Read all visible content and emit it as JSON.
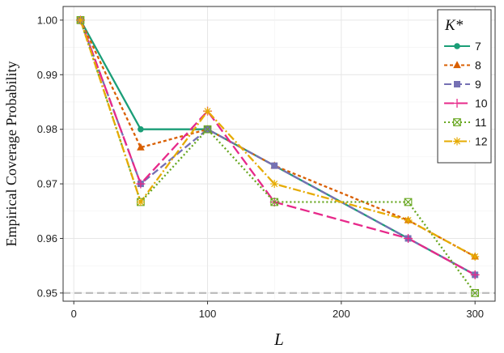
{
  "chart_data": {
    "type": "line",
    "title": "",
    "xlabel": "L",
    "ylabel": "Empirical Coverage Probability",
    "xlim": [
      -8,
      315
    ],
    "ylim": [
      0.9485,
      1.0025
    ],
    "xticks": [
      0,
      100,
      200,
      300
    ],
    "yticks": [
      0.95,
      0.96,
      0.97,
      0.98,
      0.99,
      1.0
    ],
    "ytick_labels": [
      "0.95",
      "0.96",
      "0.97",
      "0.98",
      "0.99",
      "1.00"
    ],
    "grid": true,
    "reference_line": {
      "y": 0.95,
      "style": "dashed",
      "color": "#bdbdbd"
    },
    "legend": {
      "title": "K*",
      "position": "top-right"
    },
    "x": [
      5,
      50,
      100,
      150,
      250,
      300
    ],
    "series": [
      {
        "name": "7",
        "color": "#1b9e77",
        "dash": "",
        "marker": "circle",
        "values": [
          1.0,
          0.98,
          0.98,
          0.97333,
          0.96,
          0.95333
        ]
      },
      {
        "name": "8",
        "color": "#d95f02",
        "dash": "4,3",
        "marker": "triangle",
        "values": [
          1.0,
          0.97667,
          0.98,
          0.97333,
          0.96333,
          0.95667
        ]
      },
      {
        "name": "9",
        "color": "#7570b3",
        "dash": "9,4",
        "marker": "square",
        "values": [
          1.0,
          0.97,
          0.98,
          0.97333,
          0.96,
          0.95333
        ]
      },
      {
        "name": "10",
        "color": "#e7298a",
        "dash": "12,5",
        "marker": "plus",
        "values": [
          1.0,
          0.97,
          0.98333,
          0.96667,
          0.96,
          0.95333
        ]
      },
      {
        "name": "11",
        "color": "#66a61e",
        "dash": "2,3",
        "marker": "boxx",
        "values": [
          1.0,
          0.96667,
          0.98,
          0.96667,
          0.96667,
          0.95
        ]
      },
      {
        "name": "12",
        "color": "#e6ab02",
        "dash": "10,3,2,3",
        "marker": "star",
        "values": [
          1.0,
          0.96667,
          0.98333,
          0.97,
          0.96333,
          0.95667
        ]
      }
    ]
  }
}
